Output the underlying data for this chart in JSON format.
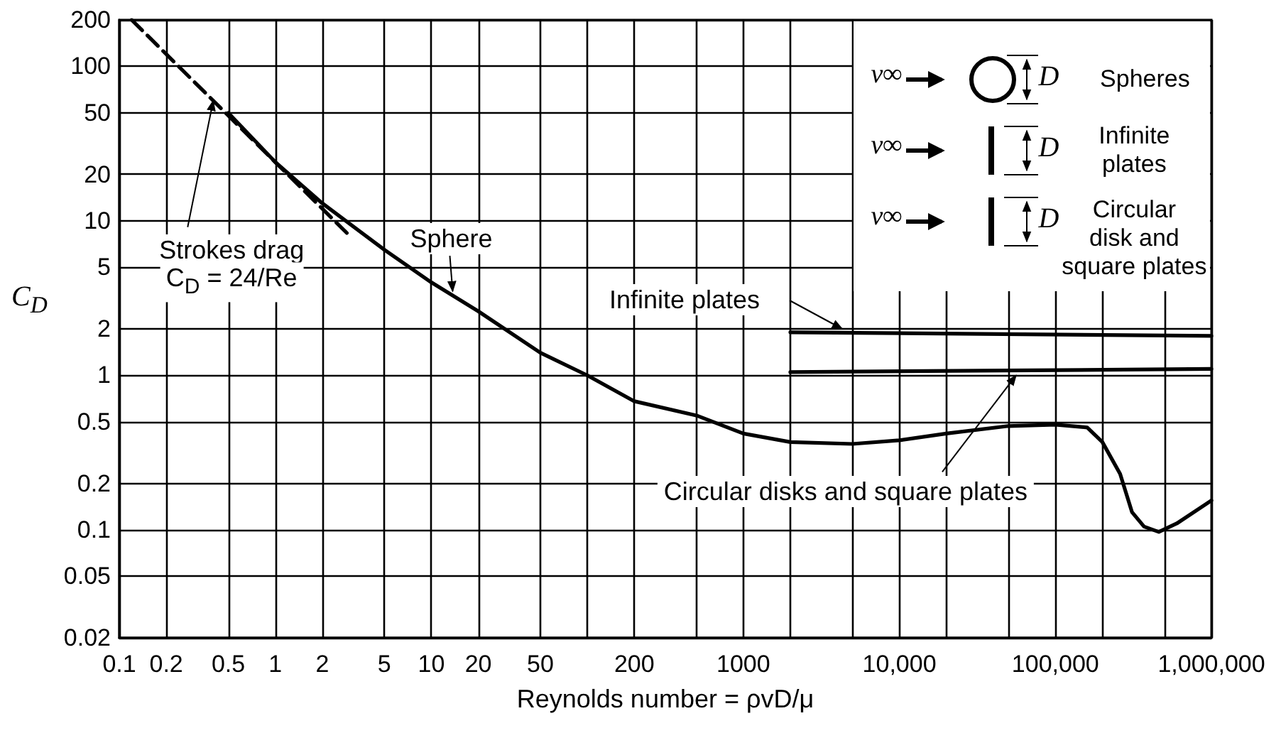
{
  "chart_data": {
    "type": "line",
    "xlabel": "Reynolds number = ρvD/μ",
    "ylabel": "C$_{D}$",
    "log": "xy",
    "grid": true,
    "marker": "none",
    "xlim": [
      0.1,
      1000000
    ],
    "ylim": [
      0.02,
      200
    ],
    "xticks": [
      0.1,
      0.2,
      0.5,
      1,
      2,
      5,
      10,
      20,
      50,
      {
        "value": 100,
        "label": null
      },
      200,
      {
        "value": 500,
        "label": null
      },
      1000,
      {
        "value": 2000,
        "label": null
      },
      {
        "value": 5000,
        "label": null
      },
      {
        "value": 10000,
        "label": "10,000"
      },
      {
        "value": 20000,
        "label": null
      },
      {
        "value": 50000,
        "label": null
      },
      {
        "value": 100000,
        "label": "100,000"
      },
      {
        "value": 200000,
        "label": null
      },
      {
        "value": 500000,
        "label": null
      },
      {
        "value": 1000000,
        "label": "1,000,000"
      }
    ],
    "yticks": [
      0.02,
      0.05,
      0.1,
      0.2,
      0.5,
      1,
      2,
      5,
      10,
      20,
      50,
      100,
      200
    ],
    "series": [
      {
        "color": "#000000",
        "line_style": "dashed",
        "x": [
          0.12,
          3
        ],
        "values": [
          200,
          8
        ]
      },
      {
        "color": "#000000",
        "line_style": "solid",
        "x": [
          0.5,
          1,
          2,
          5,
          10,
          20,
          50,
          100,
          200,
          500,
          1000,
          2000,
          5000,
          10000,
          20000,
          50000,
          100000,
          160000,
          200000,
          260000,
          310000,
          370000,
          460000,
          600000,
          1000000
        ],
        "values": [
          50,
          24,
          13,
          6.5,
          4,
          2.6,
          1.4,
          1.0,
          0.68,
          0.55,
          0.42,
          0.37,
          0.36,
          0.38,
          0.42,
          0.47,
          0.48,
          0.46,
          0.37,
          0.23,
          0.13,
          0.105,
          0.097,
          0.11,
          0.155
        ]
      },
      {
        "color": "#000000",
        "line_style": "solid",
        "x": [
          2000,
          1000000
        ],
        "values": [
          1.9,
          1.8
        ]
      },
      {
        "color": "#000000",
        "line_style": "solid",
        "x": [
          2000,
          1000000
        ],
        "values": [
          1.05,
          1.1
        ]
      }
    ],
    "annotations": [
      {
        "text": "Strokes drag",
        "x": 0.4,
        "y": 60
      },
      "C$_{D}$ = 24/Re",
      {
        "text": "Sphere",
        "x": 13.7,
        "y": 3.5
      },
      {
        "text": "Infinite plates",
        "x": 4300,
        "y": 2.0
      },
      {
        "text": "Circular disks and square plates",
        "x": 56000,
        "y": 1.0
      },
      "v∞",
      "D",
      "Spheres",
      "v∞",
      "D",
      "Infinite\nplates",
      "v∞",
      "D",
      "Circular\ndisk and\nsquare plates"
    ]
  }
}
